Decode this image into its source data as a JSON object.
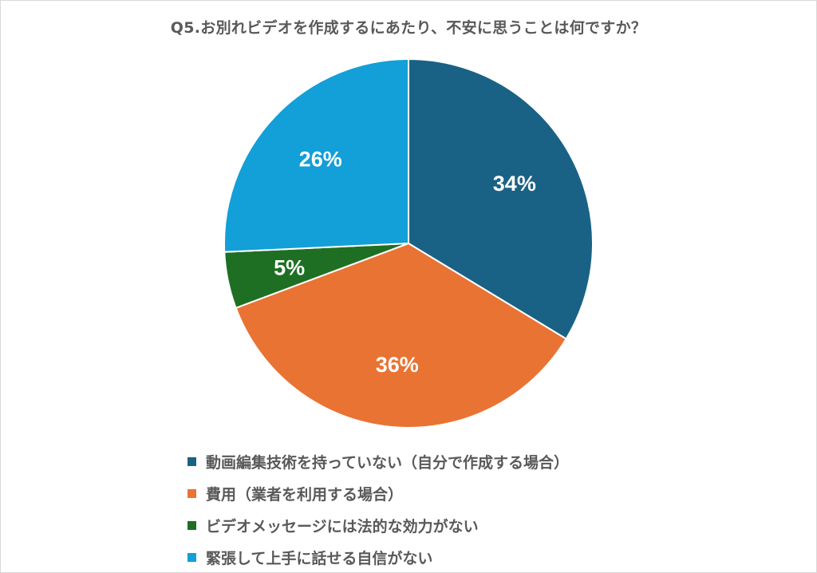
{
  "chart_data": {
    "type": "pie",
    "title": "Q5.お別れビデオを作成するにあたり、不安に思うことは何ですか？",
    "slices": [
      {
        "name": "動画編集技術を持っていない（自分で作成する場合）",
        "value": 34,
        "label": "34%",
        "color": "#1a6285"
      },
      {
        "name": "費用（業者を利用する場合）",
        "value": 36,
        "label": "36%",
        "color": "#e97333"
      },
      {
        "name": "ビデオメッセージには法的な効力がない",
        "value": 5,
        "label": "5%",
        "color": "#1e6f23"
      },
      {
        "name": "緊張して上手に話せる自信がない",
        "value": 26,
        "label": "26%",
        "color": "#139fd7"
      }
    ],
    "legend_position": "bottom"
  }
}
